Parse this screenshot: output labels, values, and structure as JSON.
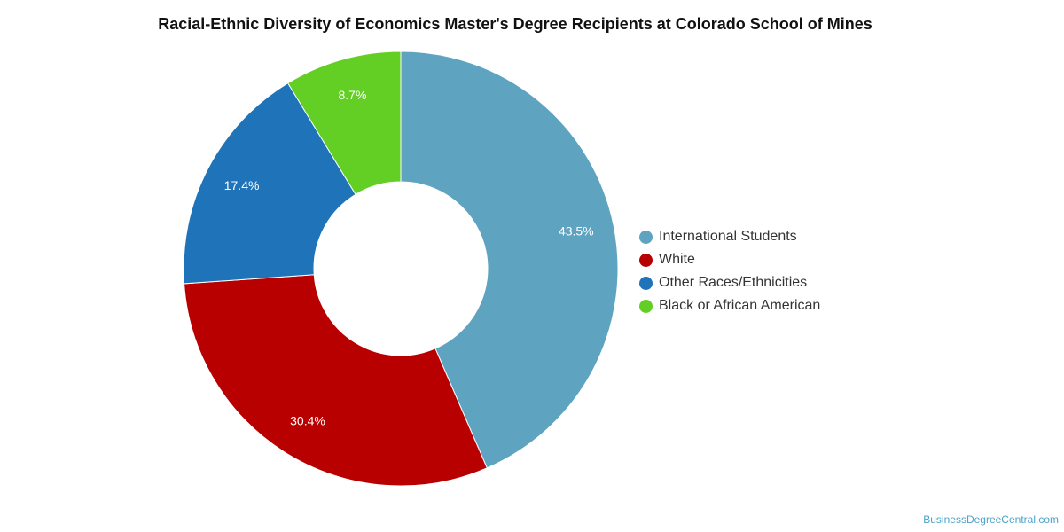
{
  "chart_data": {
    "type": "pie",
    "variant": "donut",
    "title": "Racial-Ethnic Diversity of Economics Master's Degree Recipients at Colorado School of Mines",
    "legend_position": "right",
    "slices": [
      {
        "name": "International Students",
        "value": 43.5,
        "label": "43.5%",
        "color": "#5ea3bf"
      },
      {
        "name": "White",
        "value": 30.4,
        "label": "30.4%",
        "color": "#b80000"
      },
      {
        "name": "Other Races/Ethnicities",
        "value": 17.4,
        "label": "17.4%",
        "color": "#1f73b8"
      },
      {
        "name": "Black or African American",
        "value": 8.7,
        "label": "8.7%",
        "color": "#63cf24"
      }
    ]
  },
  "footer": {
    "credit": "BusinessDegreeCentral.com"
  }
}
